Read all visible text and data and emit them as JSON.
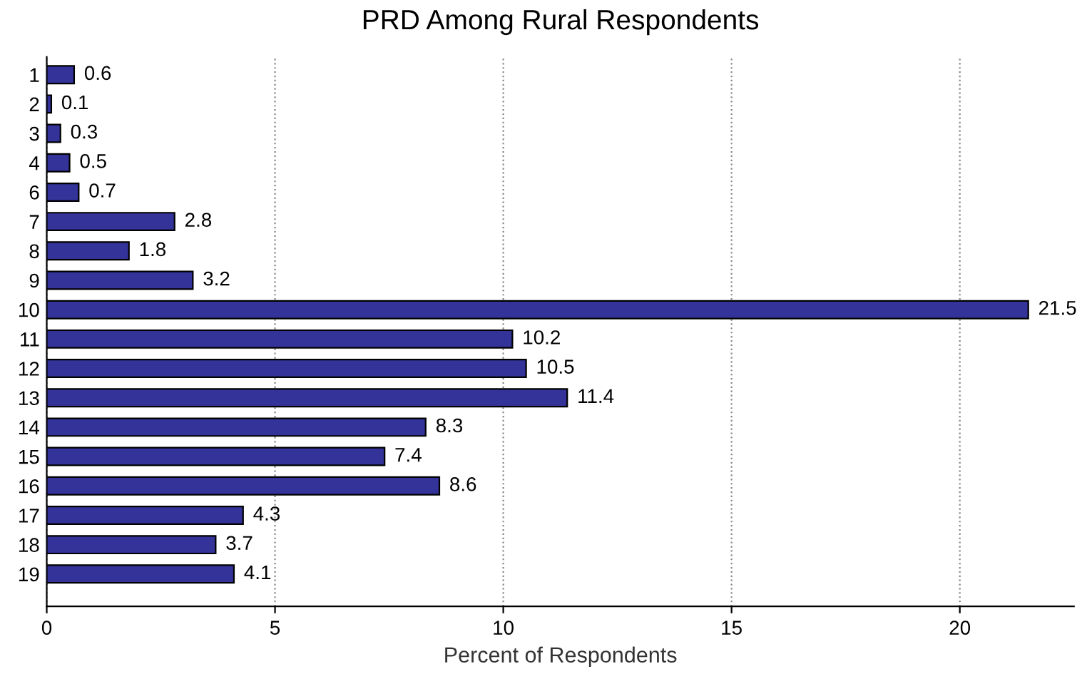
{
  "chart_data": {
    "type": "bar",
    "orientation": "horizontal",
    "title": "PRD Among Rural Respondents",
    "xlabel": "Percent of Respondents",
    "categories": [
      "1",
      "2",
      "3",
      "4",
      "6",
      "7",
      "8",
      "9",
      "10",
      "11",
      "12",
      "13",
      "14",
      "15",
      "16",
      "17",
      "18",
      "19"
    ],
    "values": [
      0.6,
      0.1,
      0.3,
      0.5,
      0.7,
      2.8,
      1.8,
      3.2,
      21.5,
      10.2,
      10.5,
      11.4,
      8.3,
      7.4,
      8.6,
      4.3,
      3.7,
      4.1
    ],
    "color": "#333399",
    "xlim": [
      0,
      22.5
    ],
    "xticks": [
      0,
      5,
      10,
      15,
      20
    ],
    "grid": "x",
    "data_labels": true
  }
}
